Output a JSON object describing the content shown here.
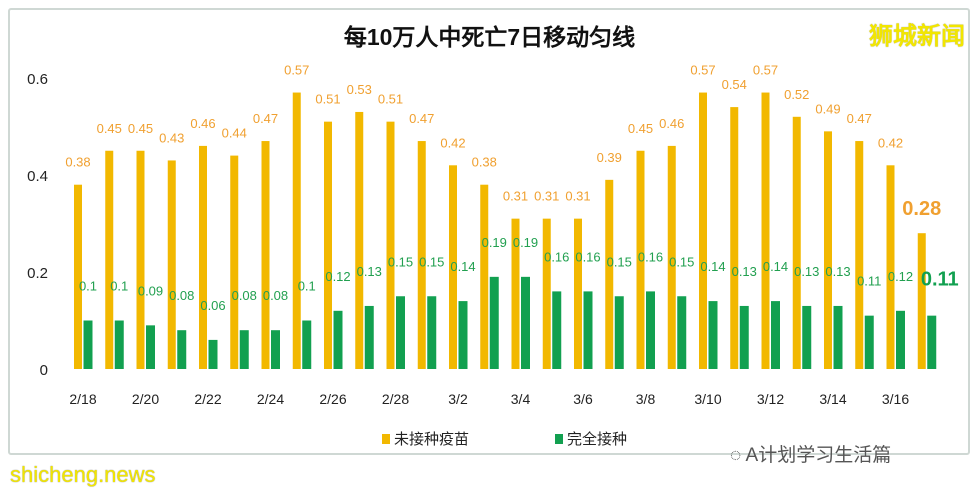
{
  "chart_data": {
    "type": "bar",
    "title": "每10万人中死亡7日移动匀线",
    "categories": [
      "2/18",
      "2/19",
      "2/20",
      "2/21",
      "2/22",
      "2/23",
      "2/24",
      "2/25",
      "2/26",
      "2/27",
      "2/28",
      "3/1",
      "3/2",
      "3/3",
      "3/4",
      "3/5",
      "3/6",
      "3/7",
      "3/8",
      "3/9",
      "3/10",
      "3/11",
      "3/12",
      "3/13",
      "3/14",
      "3/15",
      "3/16",
      "3/17"
    ],
    "tick_labels": [
      "2/18",
      "2/20",
      "2/22",
      "2/24",
      "2/26",
      "2/28",
      "3/2",
      "3/4",
      "3/6",
      "3/8",
      "3/10",
      "3/12",
      "3/14",
      "3/16"
    ],
    "series": [
      {
        "name": "未接种疫苗",
        "color": "#f2b800",
        "label_color": "#f0a030",
        "values": [
          0.38,
          0.45,
          0.45,
          0.43,
          0.46,
          0.44,
          0.47,
          0.57,
          0.51,
          0.53,
          0.51,
          0.47,
          0.42,
          0.38,
          0.31,
          0.31,
          0.31,
          0.39,
          0.45,
          0.46,
          0.57,
          0.54,
          0.57,
          0.52,
          0.49,
          0.47,
          0.42,
          0.28
        ]
      },
      {
        "name": "完全接种",
        "color": "#12a050",
        "label_color": "#22a050",
        "values": [
          0.1,
          0.1,
          0.09,
          0.08,
          0.06,
          0.08,
          0.08,
          0.1,
          0.12,
          0.13,
          0.15,
          0.15,
          0.14,
          0.19,
          0.19,
          0.16,
          0.16,
          0.15,
          0.16,
          0.15,
          0.14,
          0.13,
          0.14,
          0.13,
          0.13,
          0.11,
          0.12,
          0.11
        ]
      }
    ],
    "yticks": [
      "0",
      "0.2",
      "0.4",
      "0.6"
    ],
    "ylim": [
      0,
      0.6
    ],
    "grid": false,
    "legend": "bottom"
  },
  "brand": "狮城新闻",
  "watermark": "shicheng.news",
  "wechat_source": "A计划学习生活篇"
}
